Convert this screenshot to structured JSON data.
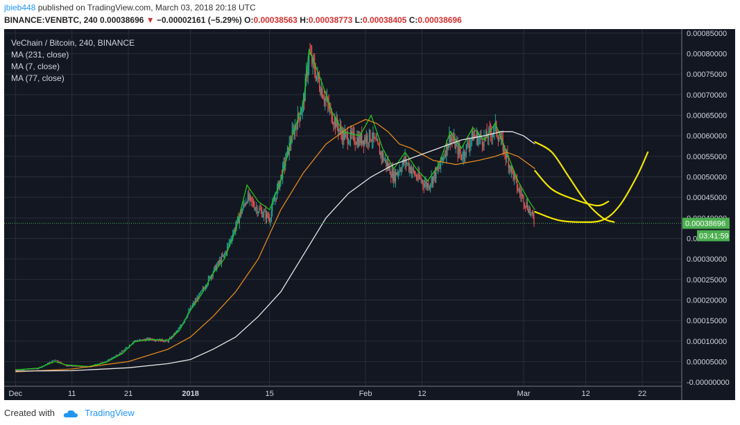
{
  "header": {
    "user": "jbieb448",
    "published_text": " published on TradingView.com, March 03, 2018 20:18 UTC",
    "symbol_line": "BINANCE:VENBTC, 240 0.00038696",
    "change_marker": "▼",
    "change": "−0.00002161 (−5.29%)",
    "o_label": "O:",
    "o_value": "0.00038563",
    "h_label": "H:",
    "h_value": "0.00038773",
    "l_label": "L:",
    "l_value": "0.00038405",
    "c_label": "C:",
    "c_value": "0.00038696"
  },
  "legend": {
    "title": "VeChain / Bitcoin, 240, BINANCE",
    "ma1": "MA (231, close)",
    "ma2": "MA (7, close)",
    "ma3": "MA (77, close)"
  },
  "footer": {
    "created_with": "Created with",
    "brand": "TradingView"
  },
  "colors": {
    "background": "#131722",
    "up": "#26a69a",
    "down": "#ef5350",
    "ma231": "#e8e8e8",
    "ma7": "#22c51a",
    "ma77": "#e38a1e",
    "drawing": "#f2e600",
    "price_tag": "#4caf50"
  },
  "chart_data": {
    "type": "line",
    "title": "VeChain / Bitcoin, 240, BINANCE",
    "xlabel": "",
    "ylabel": "",
    "ylim": [
      -1e-05,
      0.00086
    ],
    "y_ticks": [
      "0.00085000",
      "0.00080000",
      "0.00075000",
      "0.00070000",
      "0.00065000",
      "0.00060000",
      "0.00055000",
      "0.00050000",
      "0.00045000",
      "0.00040000",
      "0.00035000",
      "0.00030000",
      "0.00025000",
      "0.00020000",
      "0.00015000",
      "0.00010000",
      "0.00005000",
      "-0.00000000"
    ],
    "x_ticks": [
      {
        "label": "Dec",
        "day": 0
      },
      {
        "label": "11",
        "day": 10
      },
      {
        "label": "21",
        "day": 20
      },
      {
        "label": "2018",
        "day": 31
      },
      {
        "label": "15",
        "day": 45
      },
      {
        "label": "Feb",
        "day": 62
      },
      {
        "label": "12",
        "day": 72
      },
      {
        "label": "Mar",
        "day": 90
      },
      {
        "label": "12",
        "day": 101
      },
      {
        "label": "22",
        "day": 111
      }
    ],
    "last_price": 0.00038696,
    "last_price_label": "0.00038696",
    "countdown_label": "03:41:59",
    "series": [
      {
        "role": "price",
        "points": [
          [
            0,
            3e-05
          ],
          [
            4,
            3.3e-05
          ],
          [
            7,
            5.5e-05
          ],
          [
            9,
            4e-05
          ],
          [
            13,
            3.7e-05
          ],
          [
            16,
            5e-05
          ],
          [
            19,
            7.5e-05
          ],
          [
            21,
            0.0001
          ],
          [
            24,
            0.000105
          ],
          [
            27,
            0.0001
          ],
          [
            29,
            0.00013
          ],
          [
            31,
            0.00018
          ],
          [
            33,
            0.00022
          ],
          [
            35,
            0.00027
          ],
          [
            37,
            0.00031
          ],
          [
            39,
            0.00038
          ],
          [
            41,
            0.00045
          ],
          [
            43,
            0.00042
          ],
          [
            45,
            0.0004
          ],
          [
            47,
            0.0005
          ],
          [
            49,
            0.0006
          ],
          [
            51,
            0.00068
          ],
          [
            52,
            0.0008
          ],
          [
            54,
            0.00072
          ],
          [
            56,
            0.00065
          ],
          [
            58,
            0.0006
          ],
          [
            61,
            0.00059
          ],
          [
            63,
            0.0006
          ],
          [
            65,
            0.00055
          ],
          [
            67,
            0.0005
          ],
          [
            69,
            0.00054
          ],
          [
            71,
            0.0005
          ],
          [
            73,
            0.00048
          ],
          [
            75,
            0.00052
          ],
          [
            77,
            0.0006
          ],
          [
            79,
            0.00055
          ],
          [
            81,
            0.0006
          ],
          [
            83,
            0.00059
          ],
          [
            85,
            0.00062
          ],
          [
            87,
            0.00055
          ],
          [
            89,
            0.00047
          ],
          [
            91,
            0.00042
          ],
          [
            92,
            0.00038696
          ]
        ]
      },
      {
        "name": "MA (7, close)",
        "role": "ma7",
        "points": [
          [
            0,
            3e-05
          ],
          [
            4,
            3.4e-05
          ],
          [
            7,
            5e-05
          ],
          [
            9,
            4.2e-05
          ],
          [
            13,
            3.8e-05
          ],
          [
            16,
            4.8e-05
          ],
          [
            19,
            7e-05
          ],
          [
            21,
            9.8e-05
          ],
          [
            24,
            0.000104
          ],
          [
            27,
            0.000102
          ],
          [
            29,
            0.000125
          ],
          [
            31,
            0.000175
          ],
          [
            33,
            0.000215
          ],
          [
            35,
            0.000265
          ],
          [
            37,
            0.0003
          ],
          [
            39,
            0.00037
          ],
          [
            41,
            0.00048
          ],
          [
            43,
            0.00044
          ],
          [
            45,
            0.00042
          ],
          [
            47,
            0.00049
          ],
          [
            49,
            0.0006
          ],
          [
            51,
            0.00068
          ],
          [
            52,
            0.00081
          ],
          [
            54,
            0.00074
          ],
          [
            56,
            0.00066
          ],
          [
            58,
            0.00061
          ],
          [
            61,
            0.0006
          ],
          [
            63,
            0.00065
          ],
          [
            65,
            0.00057
          ],
          [
            67,
            0.00052
          ],
          [
            69,
            0.00056
          ],
          [
            71,
            0.00052
          ],
          [
            73,
            0.00049
          ],
          [
            75,
            0.00053
          ],
          [
            77,
            0.00061
          ],
          [
            79,
            0.00057
          ],
          [
            81,
            0.00062
          ],
          [
            83,
            0.00059
          ],
          [
            85,
            0.00063
          ],
          [
            87,
            0.00056
          ],
          [
            89,
            0.00049
          ],
          [
            91,
            0.00044
          ],
          [
            92,
            0.00042
          ]
        ]
      },
      {
        "name": "MA (77, close)",
        "role": "ma77",
        "points": [
          [
            0,
            2.5e-05
          ],
          [
            10,
            3.2e-05
          ],
          [
            20,
            5e-05
          ],
          [
            27,
            8e-05
          ],
          [
            31,
            0.00011
          ],
          [
            35,
            0.00016
          ],
          [
            39,
            0.00022
          ],
          [
            43,
            0.0003
          ],
          [
            47,
            0.00042
          ],
          [
            51,
            0.00051
          ],
          [
            55,
            0.00058
          ],
          [
            59,
            0.00062
          ],
          [
            62,
            0.00064
          ],
          [
            64,
            0.00063
          ],
          [
            66,
            0.00061
          ],
          [
            68,
            0.00058
          ],
          [
            70,
            0.00057
          ],
          [
            74,
            0.00054
          ],
          [
            78,
            0.00053
          ],
          [
            82,
            0.00054
          ],
          [
            85,
            0.00055
          ],
          [
            87,
            0.00056
          ],
          [
            89,
            0.00055
          ],
          [
            91,
            0.00053
          ],
          [
            92,
            0.00052
          ]
        ]
      },
      {
        "name": "MA (231, close)",
        "role": "ma231",
        "points": [
          [
            0,
            2.7e-05
          ],
          [
            10,
            2.8e-05
          ],
          [
            20,
            3.5e-05
          ],
          [
            27,
            4.5e-05
          ],
          [
            31,
            5.5e-05
          ],
          [
            35,
            8e-05
          ],
          [
            39,
            0.00011
          ],
          [
            43,
            0.00016
          ],
          [
            47,
            0.00022
          ],
          [
            51,
            0.00031
          ],
          [
            55,
            0.0004
          ],
          [
            59,
            0.00046
          ],
          [
            63,
            0.0005
          ],
          [
            67,
            0.00053
          ],
          [
            71,
            0.00055
          ],
          [
            75,
            0.00057
          ],
          [
            79,
            0.00059
          ],
          [
            83,
            0.0006
          ],
          [
            86,
            0.00061
          ],
          [
            88,
            0.00061
          ],
          [
            90,
            0.0006
          ],
          [
            92,
            0.00058
          ]
        ]
      }
    ],
    "drawings": [
      [
        [
          92,
          0.000585
        ],
        [
          95,
          0.00056
        ],
        [
          98,
          0.0005
        ],
        [
          101,
          0.00044
        ],
        [
          104,
          0.0004
        ],
        [
          106,
          0.00039
        ]
      ],
      [
        [
          92,
          0.000515
        ],
        [
          95,
          0.00047
        ],
        [
          99,
          0.000445
        ],
        [
          103,
          0.00043
        ],
        [
          105,
          0.00044
        ]
      ],
      [
        [
          92,
          0.000415
        ],
        [
          96,
          0.000395
        ],
        [
          100,
          0.00039
        ],
        [
          104,
          0.000395
        ],
        [
          107,
          0.00043
        ],
        [
          110,
          0.0005
        ],
        [
          112,
          0.00056
        ]
      ]
    ]
  }
}
